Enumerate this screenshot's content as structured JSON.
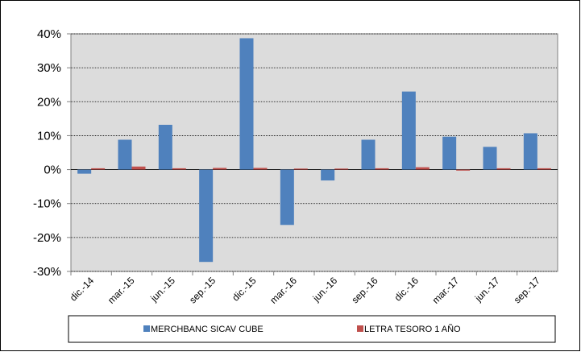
{
  "chart_data": {
    "type": "bar",
    "categories": [
      "dic.-14",
      "mar.-15",
      "jun.-15",
      "sep.-15",
      "dic.-15",
      "mar.-16",
      "jun.-16",
      "sep.-16",
      "dic.-16",
      "mar.-17",
      "jun.-17",
      "sep.-17"
    ],
    "series": [
      {
        "name": "MERCHBANC SICAV CUBE",
        "color": "#4f81bd",
        "values": [
          -1.2,
          8.8,
          13.2,
          -27.2,
          38.7,
          -16.3,
          -3.2,
          8.8,
          23.0,
          9.7,
          6.7,
          10.7
        ]
      },
      {
        "name": "LETRA TESORO 1 AÑO",
        "color": "#c0504d",
        "values": [
          0.4,
          0.9,
          0.4,
          0.5,
          0.5,
          0.3,
          0.3,
          0.4,
          0.7,
          -0.3,
          0.4,
          0.4
        ]
      }
    ],
    "ylim": [
      -30,
      40
    ],
    "yticks": [
      {
        "value": -30,
        "label": "-30%"
      },
      {
        "value": -20,
        "label": "-20%"
      },
      {
        "value": -10,
        "label": "-10%"
      },
      {
        "value": 0,
        "label": "0%"
      },
      {
        "value": 10,
        "label": "10%"
      },
      {
        "value": 20,
        "label": "20%"
      },
      {
        "value": 30,
        "label": "30%"
      },
      {
        "value": 40,
        "label": "40%"
      }
    ],
    "grid": true,
    "legend": "bottom"
  }
}
